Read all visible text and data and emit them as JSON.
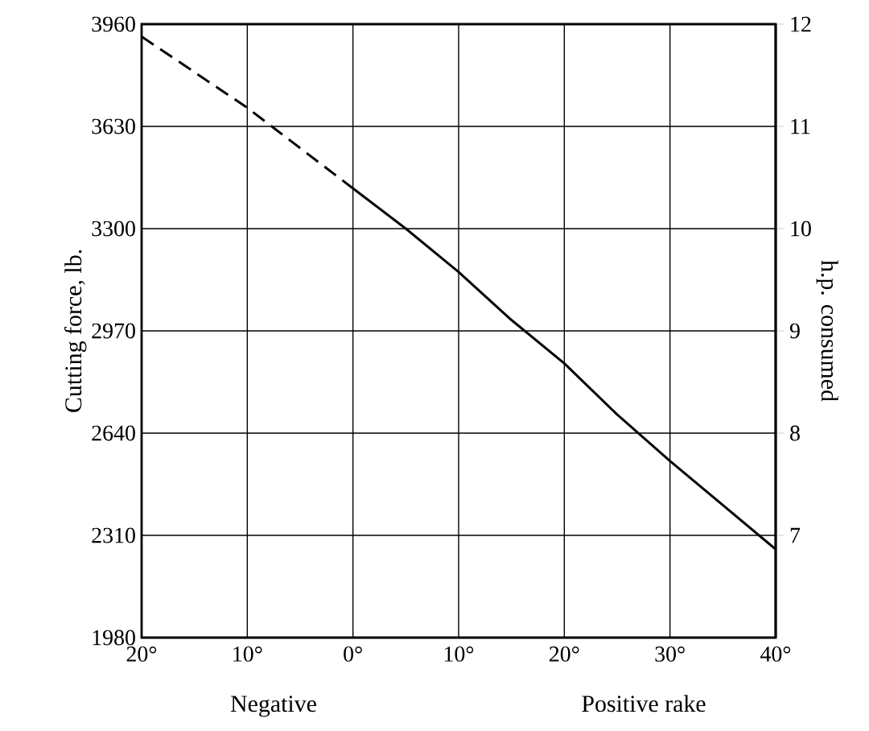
{
  "chart_data": {
    "type": "line",
    "ylabel": "Cutting force, lb.",
    "y2label": "h.p. consumed",
    "annotations": [
      "Negative",
      "Positive rake"
    ],
    "xlim": [
      -20,
      40
    ],
    "xticks": [
      {
        "value": -20,
        "label": "20°"
      },
      {
        "value": -10,
        "label": "10°"
      },
      {
        "value": 0,
        "label": "0°"
      },
      {
        "value": 10,
        "label": "10°"
      },
      {
        "value": 20,
        "label": "20°"
      },
      {
        "value": 30,
        "label": "30°"
      },
      {
        "value": 40,
        "label": "40°"
      }
    ],
    "ylim": [
      1980,
      3960
    ],
    "yticks": [
      1980,
      2310,
      2640,
      2970,
      3300,
      3630,
      3960
    ],
    "y2lim": [
      6,
      12
    ],
    "y2ticks": [
      7,
      8,
      9,
      10,
      11,
      12
    ],
    "grid": true,
    "series": [
      {
        "color": "#000000",
        "line_style": "dashed",
        "x": [
          -20,
          -10,
          0
        ],
        "values": [
          3920,
          3690,
          3430
        ]
      },
      {
        "color": "#000000",
        "line_style": "solid",
        "x": [
          0,
          5,
          10,
          15,
          20,
          25,
          30,
          35,
          40
        ],
        "values": [
          3430,
          3300,
          3160,
          3005,
          2865,
          2700,
          2550,
          2408,
          2265
        ]
      }
    ]
  }
}
